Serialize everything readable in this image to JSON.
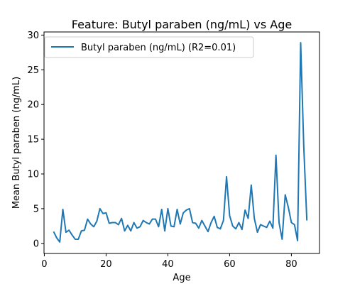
{
  "chart_data": {
    "type": "line",
    "title": "Feature: Butyl paraben (ng/mL) vs Age",
    "xlabel": "Age",
    "ylabel": "Mean Butyl paraben (ng/mL)",
    "xlim": [
      -0.1,
      89.1
    ],
    "ylim": [
      -1.45,
      30.45
    ],
    "xticks": [
      0,
      20,
      40,
      60,
      80
    ],
    "yticks": [
      0,
      5,
      10,
      15,
      20,
      25,
      30
    ],
    "grid": false,
    "legend_position": "top-left",
    "series": [
      {
        "name": "Butyl paraben (ng/mL) (R2=0.01)",
        "color": "#1f77b4",
        "x": [
          3,
          4,
          5,
          6,
          7,
          8,
          9,
          10,
          11,
          12,
          13,
          14,
          15,
          16,
          17,
          18,
          19,
          20,
          21,
          22,
          23,
          24,
          25,
          26,
          27,
          28,
          29,
          30,
          31,
          32,
          33,
          34,
          35,
          36,
          37,
          38,
          39,
          40,
          41,
          42,
          43,
          44,
          45,
          46,
          47,
          48,
          49,
          50,
          51,
          52,
          53,
          54,
          55,
          56,
          57,
          58,
          59,
          60,
          61,
          62,
          63,
          64,
          65,
          66,
          67,
          68,
          69,
          70,
          71,
          72,
          73,
          74,
          75,
          76,
          77,
          78,
          79,
          80,
          81,
          82,
          83,
          84,
          85
        ],
        "y": [
          1.7,
          0.8,
          0.2,
          4.9,
          1.6,
          1.9,
          1.2,
          0.6,
          0.6,
          1.8,
          1.9,
          3.5,
          2.8,
          2.4,
          3.2,
          5.0,
          4.3,
          4.4,
          2.9,
          3.0,
          3.0,
          2.7,
          3.6,
          1.8,
          2.6,
          1.8,
          3.0,
          2.2,
          2.4,
          3.3,
          3.0,
          2.8,
          3.5,
          3.5,
          2.4,
          4.9,
          1.8,
          5.0,
          2.5,
          2.4,
          4.9,
          2.8,
          4.4,
          4.8,
          5.0,
          3.0,
          2.9,
          2.2,
          3.3,
          2.5,
          1.7,
          3.0,
          3.9,
          2.3,
          2.1,
          3.3,
          9.6,
          4.0,
          2.5,
          2.1,
          3.0,
          2.0,
          4.8,
          3.6,
          8.4,
          3.6,
          1.6,
          2.7,
          2.5,
          2.3,
          3.2,
          2.2,
          12.7,
          3.0,
          0.6,
          7.0,
          5.2,
          3.0,
          2.7,
          0.4,
          28.9,
          14.0,
          3.3
        ]
      }
    ]
  }
}
